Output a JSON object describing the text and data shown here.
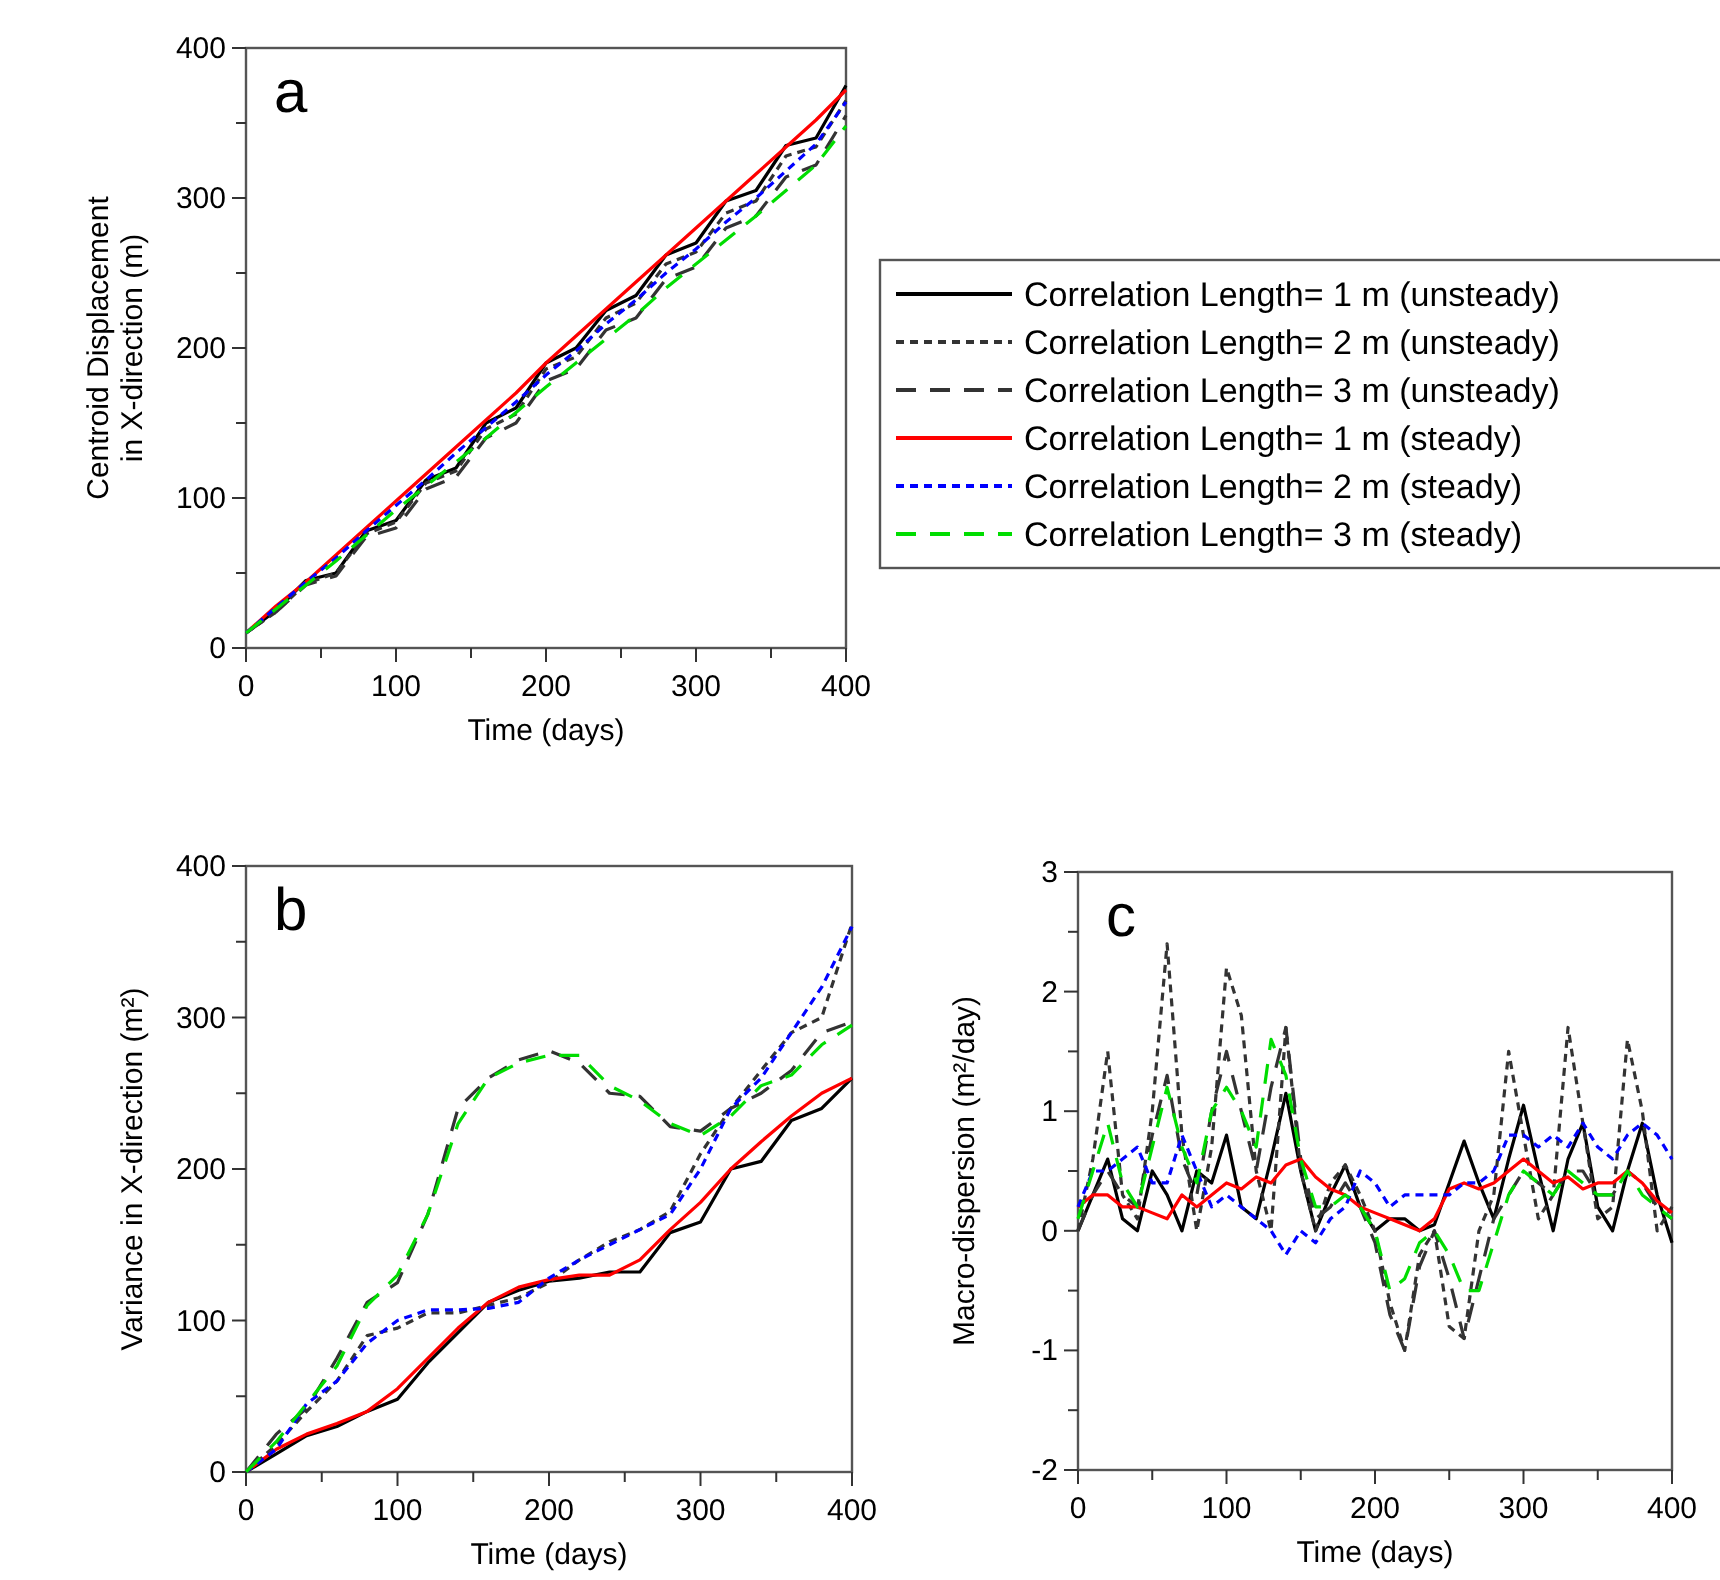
{
  "chart_data": [
    {
      "type": "line",
      "xlabel": "Time (days)",
      "ylabel": "Centroid Displacement\nin X-direction (m)",
      "annotations": [
        "a"
      ],
      "legend": "right",
      "x": [
        0,
        20,
        40,
        60,
        80,
        100,
        120,
        140,
        160,
        180,
        200,
        220,
        240,
        260,
        280,
        300,
        320,
        340,
        360,
        380,
        400
      ],
      "xlim": [
        0,
        400
      ],
      "ylim": [
        0,
        400
      ],
      "xticks": [
        0,
        {
          "value": 50,
          "label": null
        },
        100,
        {
          "value": 150,
          "label": null
        },
        200,
        {
          "value": 250,
          "label": null
        },
        300,
        {
          "value": 350,
          "label": null
        },
        400
      ],
      "yticks": [
        0,
        {
          "value": 50,
          "label": null
        },
        100,
        {
          "value": 150,
          "label": null
        },
        200,
        {
          "value": 250,
          "label": null
        },
        300,
        {
          "value": 350,
          "label": null
        },
        400
      ],
      "series": [
        {
          "name": "Correlation Length= 1 m (unsteady)",
          "color": "#000000",
          "line_style": "solid",
          "values": [
            10,
            25,
            45,
            50,
            78,
            85,
            112,
            120,
            150,
            160,
            190,
            200,
            225,
            235,
            262,
            270,
            298,
            305,
            335,
            340,
            375
          ]
        },
        {
          "name": "Correlation Length= 2 m (unsteady)",
          "color": "#333333",
          "line_style": "dotted",
          "values": [
            10,
            24,
            43,
            50,
            76,
            84,
            110,
            118,
            146,
            156,
            186,
            194,
            220,
            230,
            256,
            264,
            290,
            298,
            328,
            334,
            365
          ]
        },
        {
          "name": "Correlation Length= 3 m (unsteady)",
          "color": "#333333",
          "line_style": "dashed",
          "values": [
            10,
            24,
            42,
            48,
            74,
            80,
            106,
            114,
            140,
            150,
            178,
            186,
            212,
            220,
            246,
            254,
            280,
            288,
            314,
            322,
            355
          ]
        },
        {
          "name": "Correlation Length= 1 m (steady)",
          "color": "#ff0000",
          "line_style": "solid",
          "values": [
            10,
            28,
            44,
            62,
            80,
            98,
            116,
            134,
            152,
            170,
            190,
            208,
            226,
            244,
            262,
            280,
            298,
            316,
            334,
            352,
            372
          ]
        },
        {
          "name": "Correlation Length= 2 m (steady)",
          "color": "#0000ff",
          "line_style": "dotted",
          "values": [
            10,
            27,
            44,
            60,
            78,
            95,
            112,
            130,
            147,
            164,
            182,
            198,
            216,
            232,
            250,
            266,
            284,
            300,
            318,
            336,
            364
          ]
        },
        {
          "name": "Correlation Length= 3 m (steady)",
          "color": "#00dd00",
          "line_style": "dashed",
          "values": [
            10,
            26,
            42,
            58,
            75,
            92,
            108,
            124,
            140,
            157,
            174,
            190,
            206,
            222,
            240,
            256,
            272,
            288,
            305,
            322,
            348
          ]
        }
      ]
    },
    {
      "type": "line",
      "xlabel": "Time (days)",
      "ylabel": "Variance in X-direction (m²)",
      "annotations": [
        "b"
      ],
      "x": [
        0,
        20,
        40,
        60,
        80,
        100,
        120,
        140,
        160,
        180,
        200,
        220,
        240,
        260,
        280,
        300,
        320,
        340,
        360,
        380,
        400
      ],
      "xlim": [
        0,
        400
      ],
      "ylim": [
        0,
        400
      ],
      "xticks": [
        0,
        {
          "value": 50,
          "label": null
        },
        100,
        {
          "value": 150,
          "label": null
        },
        200,
        {
          "value": 250,
          "label": null
        },
        300,
        {
          "value": 350,
          "label": null
        },
        400
      ],
      "yticks": [
        0,
        {
          "value": 50,
          "label": null
        },
        100,
        {
          "value": 150,
          "label": null
        },
        200,
        {
          "value": 250,
          "label": null
        },
        300,
        {
          "value": 350,
          "label": null
        },
        400
      ],
      "series": [
        {
          "color": "#000000",
          "line_style": "solid",
          "values": [
            0,
            12,
            24,
            30,
            40,
            48,
            72,
            92,
            112,
            120,
            126,
            128,
            132,
            132,
            158,
            165,
            200,
            205,
            232,
            240,
            260
          ]
        },
        {
          "color": "#333333",
          "line_style": "dotted",
          "values": [
            0,
            18,
            40,
            60,
            90,
            95,
            105,
            105,
            110,
            115,
            125,
            140,
            152,
            160,
            172,
            210,
            240,
            265,
            290,
            300,
            362
          ]
        },
        {
          "color": "#333333",
          "line_style": "dashed",
          "values": [
            0,
            25,
            42,
            75,
            112,
            125,
            170,
            240,
            260,
            272,
            278,
            270,
            250,
            248,
            228,
            225,
            240,
            250,
            265,
            290,
            297
          ]
        },
        {
          "color": "#ff0000",
          "line_style": "solid",
          "values": [
            0,
            15,
            25,
            32,
            40,
            55,
            75,
            95,
            112,
            122,
            127,
            130,
            130,
            140,
            160,
            178,
            200,
            218,
            235,
            250,
            260
          ]
        },
        {
          "color": "#0000ff",
          "line_style": "dotted",
          "values": [
            0,
            15,
            45,
            60,
            85,
            100,
            107,
            107,
            108,
            112,
            128,
            140,
            150,
            160,
            170,
            200,
            240,
            260,
            290,
            320,
            360
          ]
        },
        {
          "color": "#00dd00",
          "line_style": "dashed",
          "values": [
            0,
            20,
            45,
            70,
            110,
            130,
            170,
            230,
            260,
            270,
            275,
            275,
            255,
            245,
            230,
            222,
            235,
            255,
            262,
            282,
            295
          ]
        }
      ]
    },
    {
      "type": "line",
      "xlabel": "Time (days)",
      "ylabel": "Macro-dispersion (m²/day)",
      "annotations": [
        "c"
      ],
      "x": [
        0,
        10,
        20,
        30,
        40,
        50,
        60,
        70,
        80,
        90,
        100,
        110,
        120,
        130,
        140,
        150,
        160,
        170,
        180,
        190,
        200,
        210,
        220,
        230,
        240,
        250,
        260,
        270,
        280,
        290,
        300,
        310,
        320,
        330,
        340,
        350,
        360,
        370,
        380,
        390,
        400
      ],
      "xlim": [
        0,
        400
      ],
      "ylim": [
        -2,
        3
      ],
      "xticks": [
        0,
        {
          "value": 50,
          "label": null
        },
        100,
        {
          "value": 150,
          "label": null
        },
        200,
        {
          "value": 250,
          "label": null
        },
        300,
        {
          "value": 350,
          "label": null
        },
        400
      ],
      "yticks": [
        -2,
        {
          "value": -1.5,
          "label": null
        },
        -1,
        {
          "value": -0.5,
          "label": null
        },
        0,
        {
          "value": 0.5,
          "label": null
        },
        1,
        {
          "value": 1.5,
          "label": null
        },
        2,
        {
          "value": 2.5,
          "label": null
        },
        3
      ],
      "series": [
        {
          "color": "#000000",
          "line_style": "solid",
          "values": [
            0,
            0.3,
            0.6,
            0.1,
            0,
            0.5,
            0.3,
            0.0,
            0.5,
            0.4,
            0.8,
            0.2,
            0.1,
            0.6,
            1.15,
            0.5,
            0,
            0.3,
            0.55,
            0.2,
            0.0,
            0.1,
            0.1,
            0.0,
            0.05,
            0.4,
            0.75,
            0.4,
            0.1,
            0.6,
            1.05,
            0.5,
            0.0,
            0.6,
            0.9,
            0.2,
            0.0,
            0.5,
            0.9,
            0.3,
            -0.1
          ]
        },
        {
          "color": "#333333",
          "line_style": "dotted",
          "values": [
            0,
            0.6,
            1.5,
            0.3,
            0.1,
            1.0,
            2.4,
            0.8,
            0.0,
            0.7,
            2.2,
            1.8,
            0.5,
            0.0,
            1.7,
            0.5,
            0.0,
            0.4,
            0.55,
            0.3,
            0.0,
            -0.6,
            -1.0,
            -0.2,
            0.0,
            -0.8,
            -0.9,
            0.0,
            0.3,
            1.5,
            0.8,
            0.1,
            0.3,
            1.7,
            0.9,
            0.1,
            0.2,
            1.6,
            1.0,
            0.0,
            0.2
          ]
        },
        {
          "color": "#333333",
          "line_style": "dashed",
          "values": [
            0,
            0.3,
            0.5,
            0.3,
            0.2,
            0.8,
            1.3,
            0.6,
            0.3,
            1.0,
            1.5,
            1.0,
            0.5,
            1.2,
            1.7,
            0.6,
            0.1,
            0.2,
            0.4,
            0.2,
            -0.1,
            -0.7,
            -1.0,
            -0.3,
            0.0,
            -0.4,
            -0.9,
            -0.4,
            0.1,
            0.3,
            0.5,
            0.4,
            0.3,
            0.5,
            0.5,
            0.3,
            0.3,
            0.5,
            0.4,
            0.2,
            0.1
          ]
        },
        {
          "color": "#ff0000",
          "line_style": "solid",
          "values": [
            0.2,
            0.3,
            0.3,
            0.2,
            0.2,
            0.15,
            0.1,
            0.3,
            0.2,
            0.3,
            0.4,
            0.35,
            0.45,
            0.4,
            0.55,
            0.6,
            0.45,
            0.35,
            0.3,
            0.2,
            0.15,
            0.1,
            0.05,
            0.0,
            0.1,
            0.35,
            0.4,
            0.35,
            0.4,
            0.5,
            0.6,
            0.5,
            0.4,
            0.45,
            0.35,
            0.4,
            0.4,
            0.5,
            0.4,
            0.25,
            0.15
          ]
        },
        {
          "color": "#0000ff",
          "line_style": "dotted",
          "values": [
            0.2,
            0.5,
            0.5,
            0.6,
            0.7,
            0.4,
            0.4,
            0.8,
            0.5,
            0.2,
            0.3,
            0.2,
            0.1,
            0.0,
            -0.2,
            0.0,
            -0.1,
            0.1,
            0.2,
            0.5,
            0.4,
            0.2,
            0.3,
            0.3,
            0.3,
            0.3,
            0.4,
            0.4,
            0.5,
            0.8,
            0.8,
            0.7,
            0.8,
            0.7,
            0.9,
            0.7,
            0.6,
            0.8,
            0.9,
            0.8,
            0.6
          ]
        },
        {
          "color": "#00dd00",
          "line_style": "dashed",
          "values": [
            0.1,
            0.5,
            0.9,
            0.4,
            0.2,
            0.7,
            1.2,
            0.7,
            0.4,
            1.0,
            1.2,
            1.0,
            0.7,
            1.6,
            1.3,
            0.6,
            0.2,
            0.2,
            0.3,
            0.2,
            0.0,
            -0.5,
            -0.4,
            -0.1,
            0.0,
            -0.2,
            -0.5,
            -0.5,
            -0.1,
            0.3,
            0.5,
            0.4,
            0.3,
            0.5,
            0.4,
            0.3,
            0.3,
            0.5,
            0.3,
            0.2,
            0.1
          ]
        }
      ]
    }
  ]
}
